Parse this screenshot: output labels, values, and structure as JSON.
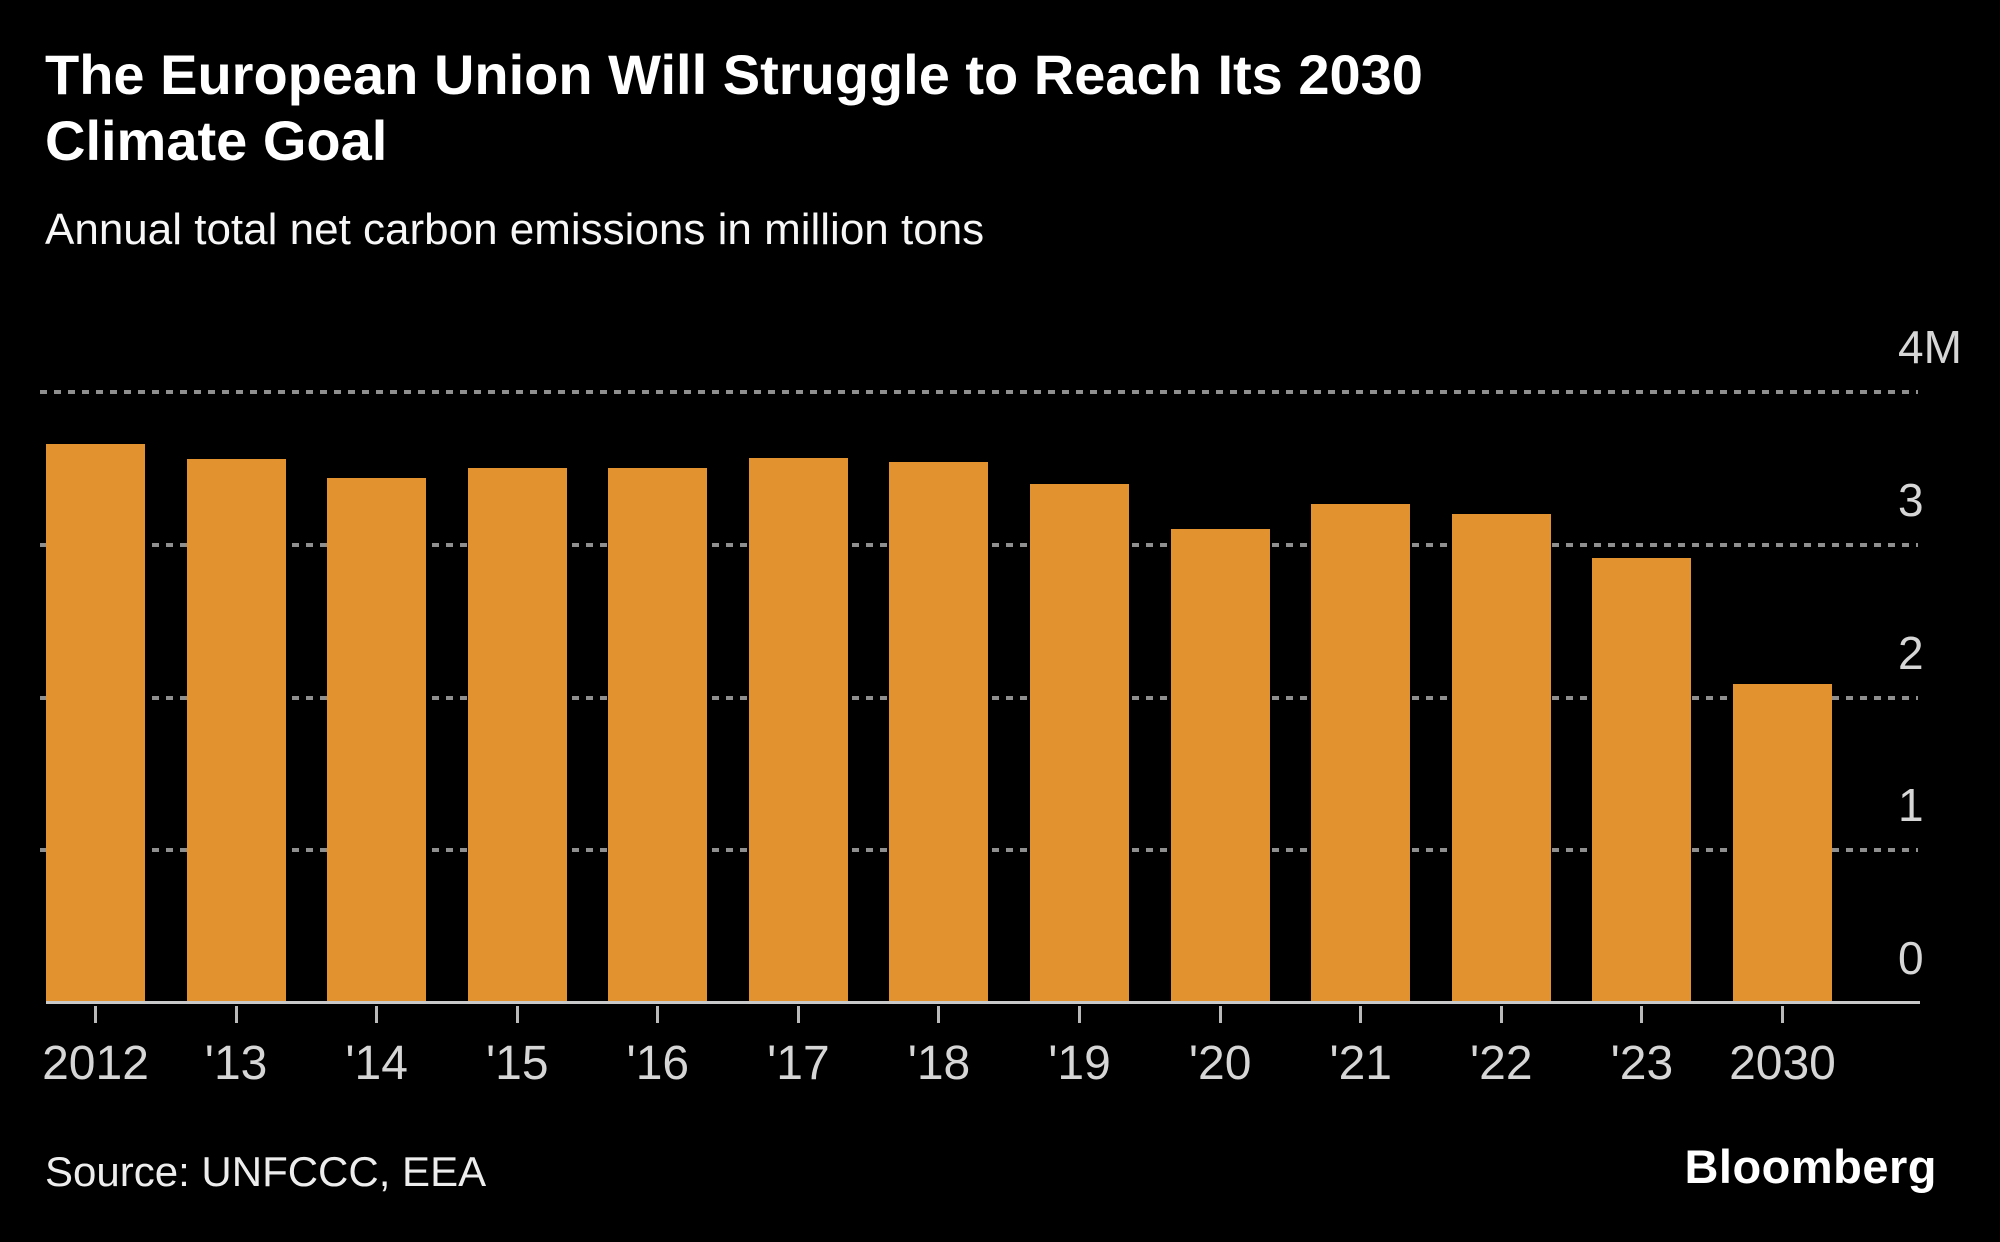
{
  "header": {
    "title": "The European Union Will Struggle to Reach Its 2030 Climate Goal",
    "subtitle": "Annual total net carbon emissions in million tons"
  },
  "source": {
    "label": "Source: UNFCCC, EEA"
  },
  "branding": {
    "logo_text": "Bloomberg"
  },
  "colors": {
    "background": "#000000",
    "bar": "#E2922E",
    "title_text": "#FFFFFF",
    "axis_label_text": "#D6D6D6",
    "gridline": "#8F8F8F",
    "axis_line": "#C9C9C9"
  },
  "chart_data": {
    "type": "bar",
    "title": "The European Union Will Struggle to Reach Its 2030 Climate Goal",
    "subtitle": "Annual total net carbon emissions in million tons",
    "categories": [
      "2012",
      "'13",
      "'14",
      "'15",
      "'16",
      "'17",
      "'18",
      "'19",
      "'20",
      "'21",
      "'22",
      "'23",
      "2030"
    ],
    "values": [
      3.66,
      3.56,
      3.44,
      3.5,
      3.5,
      3.57,
      3.54,
      3.4,
      3.1,
      3.27,
      3.2,
      2.91,
      2.09
    ],
    "unit": "million tons (M)",
    "xlabel": "",
    "ylabel": "",
    "ylim": [
      0,
      4
    ],
    "y_ticks": [
      1,
      2,
      3,
      4
    ],
    "y_tick_labels_top_to_bottom": [
      "4M",
      "3",
      "2",
      "1",
      "0"
    ],
    "grid": "horizontal dashed, labels on right",
    "legend": "none",
    "bar_color": "#E2922E",
    "background": "black"
  }
}
